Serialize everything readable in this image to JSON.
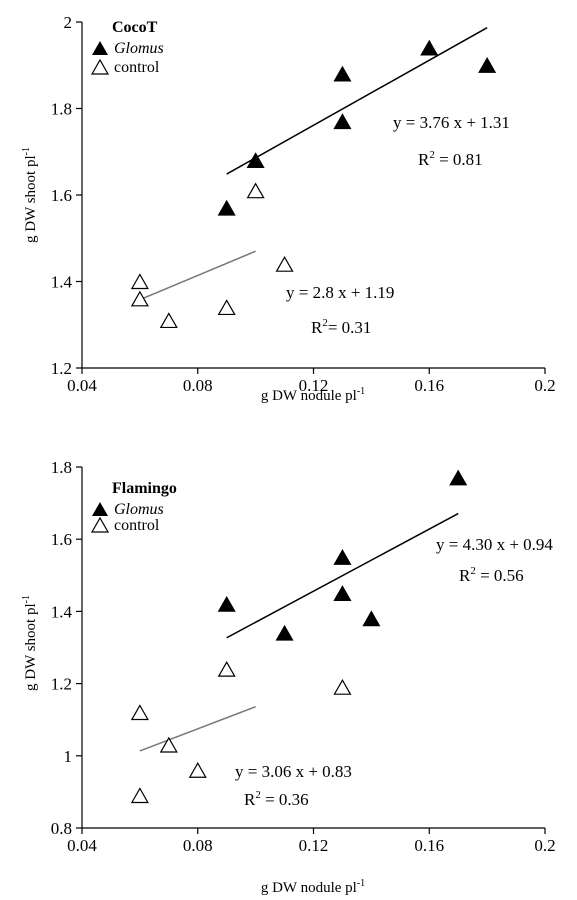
{
  "chart_data": [
    {
      "type": "scatter",
      "title": "CocoT",
      "xlabel_main": "g DW nodule pl",
      "xlabel_sup": "-1",
      "ylabel_main": "g DW shoot pl",
      "ylabel_sup": "-1",
      "xlim": [
        0.04,
        0.2
      ],
      "ylim": [
        1.2,
        2.0
      ],
      "x_ticks": [
        0.04,
        0.08,
        0.12,
        0.16,
        0.2
      ],
      "x_tick_labels": [
        "0.04",
        "0.08",
        "0.12",
        "0.16",
        "0.2"
      ],
      "y_ticks": [
        1.2,
        1.4,
        1.6,
        1.8,
        2.0
      ],
      "y_tick_labels": [
        "1.2",
        "1.4",
        "1.6",
        "1.8",
        "2"
      ],
      "grid": false,
      "legend_position": "top-left",
      "series": [
        {
          "name": "Glomus",
          "marker": "filled-triangle",
          "line_color": "#000000",
          "x": [
            0.09,
            0.1,
            0.13,
            0.13,
            0.16,
            0.18
          ],
          "y": [
            1.57,
            1.68,
            1.77,
            1.88,
            1.94,
            1.9
          ],
          "fit": {
            "slope": 3.76,
            "intercept": 1.31,
            "x_range": [
              0.09,
              0.18
            ]
          },
          "equation": "y = 3.76 x + 1.31",
          "r2_label": "R",
          "r2_sup": "2",
          "r2_value": " = 0.81"
        },
        {
          "name": "control",
          "marker": "open-triangle",
          "line_color": "#777777",
          "x": [
            0.06,
            0.06,
            0.07,
            0.09,
            0.1,
            0.11
          ],
          "y": [
            1.4,
            1.36,
            1.31,
            1.34,
            1.61,
            1.44
          ],
          "fit": {
            "slope": 2.8,
            "intercept": 1.19,
            "x_range": [
              0.06,
              0.1
            ]
          },
          "equation": "y = 2.8 x + 1.19",
          "r2_label": "R",
          "r2_sup": "2",
          "r2_value": "= 0.31"
        }
      ]
    },
    {
      "type": "scatter",
      "title": "Flamingo",
      "xlabel_main": "g DW nodule pl",
      "xlabel_sup": "-1",
      "ylabel_main": "g DW shoot pl",
      "ylabel_sup": "-1",
      "xlim": [
        0.04,
        0.2
      ],
      "ylim": [
        0.8,
        1.8
      ],
      "x_ticks": [
        0.04,
        0.08,
        0.12,
        0.16,
        0.2
      ],
      "x_tick_labels": [
        "0.04",
        "0.08",
        "0.12",
        "0.16",
        "0.2"
      ],
      "y_ticks": [
        0.8,
        1.0,
        1.2,
        1.4,
        1.6,
        1.8
      ],
      "y_tick_labels": [
        "0.8",
        "1",
        "1.2",
        "1.4",
        "1.6",
        "1.8"
      ],
      "grid": false,
      "legend_position": "top-left",
      "series": [
        {
          "name": "Glomus",
          "marker": "filled-triangle",
          "line_color": "#000000",
          "x": [
            0.09,
            0.11,
            0.13,
            0.13,
            0.14,
            0.17
          ],
          "y": [
            1.42,
            1.34,
            1.45,
            1.55,
            1.38,
            1.77
          ],
          "fit": {
            "slope": 4.3,
            "intercept": 0.94,
            "x_range": [
              0.09,
              0.17
            ]
          },
          "equation": "y = 4.30 x + 0.94",
          "r2_label": "R",
          "r2_sup": "2",
          "r2_value": " = 0.56"
        },
        {
          "name": "control",
          "marker": "open-triangle",
          "line_color": "#777777",
          "x": [
            0.06,
            0.06,
            0.07,
            0.08,
            0.09,
            0.13
          ],
          "y": [
            1.12,
            0.89,
            1.03,
            0.96,
            1.24,
            1.19
          ],
          "fit": {
            "slope": 3.06,
            "intercept": 0.83,
            "x_range": [
              0.06,
              0.1
            ]
          },
          "equation": "y = 3.06 x + 0.83",
          "r2_label": "R",
          "r2_sup": "2",
          "r2_value": " = 0.36"
        }
      ]
    }
  ]
}
